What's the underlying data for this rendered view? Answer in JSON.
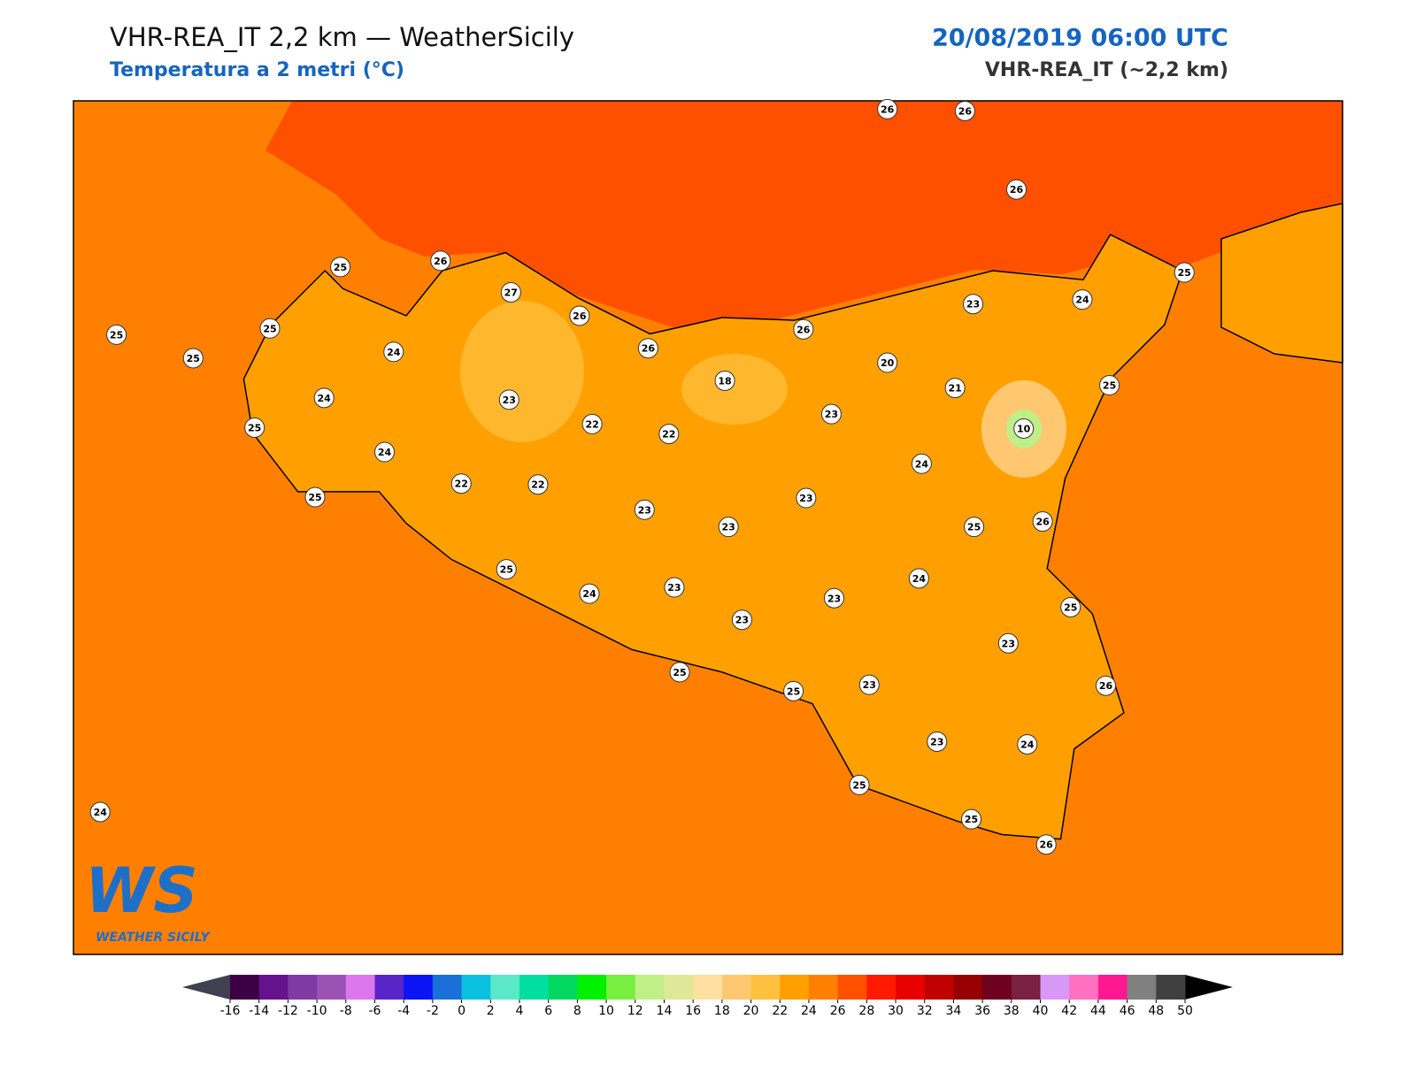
{
  "header": {
    "title": "VHR-REA_IT 2,2 km — WeatherSicily",
    "subtitle": "Temperatura a 2 metri (°C)",
    "datetime": "20/08/2019 06:00 UTC",
    "model": "VHR-REA_IT (~2,2 km)"
  },
  "stations": [
    26,
    26,
    26,
    25,
    26,
    27,
    26,
    26,
    25,
    25,
    25,
    24,
    24,
    23,
    25,
    24,
    25,
    22,
    22,
    22,
    22,
    18,
    26,
    23,
    24,
    25,
    20,
    21,
    25,
    23,
    10,
    24,
    23,
    23,
    23,
    25,
    26,
    25,
    24,
    23,
    23,
    23,
    24,
    25,
    23,
    25,
    25,
    23,
    26,
    23,
    24,
    25,
    25,
    26,
    24
  ],
  "logo": {
    "mark": "WS",
    "text": "WEATHER SICILY"
  },
  "colorbar": {
    "ticks": [
      -16,
      -14,
      -12,
      -10,
      -8,
      -6,
      -4,
      -2,
      0,
      2,
      4,
      6,
      8,
      10,
      12,
      14,
      16,
      18,
      20,
      22,
      24,
      26,
      28,
      30,
      32,
      34,
      36,
      38,
      40,
      42,
      44,
      46,
      48,
      50
    ],
    "colors": [
      "#3d0045",
      "#66128f",
      "#7f3aa3",
      "#9b52b5",
      "#dd77ee",
      "#5a25c8",
      "#0a14f5",
      "#1a70d8",
      "#0ac2e0",
      "#5ae8c8",
      "#00dea0",
      "#00d860",
      "#00f000",
      "#78ee40",
      "#c0ef88",
      "#dfe898",
      "#ffe0a0",
      "#ffc870",
      "#ffc040",
      "#ffa000",
      "#ff8000",
      "#ff5000",
      "#ff1a00",
      "#e80000",
      "#c00000",
      "#960000",
      "#6e0020",
      "#7a2040",
      "#d898f8",
      "#ff70c0",
      "#ff1890",
      "#808080",
      "#404040"
    ]
  }
}
